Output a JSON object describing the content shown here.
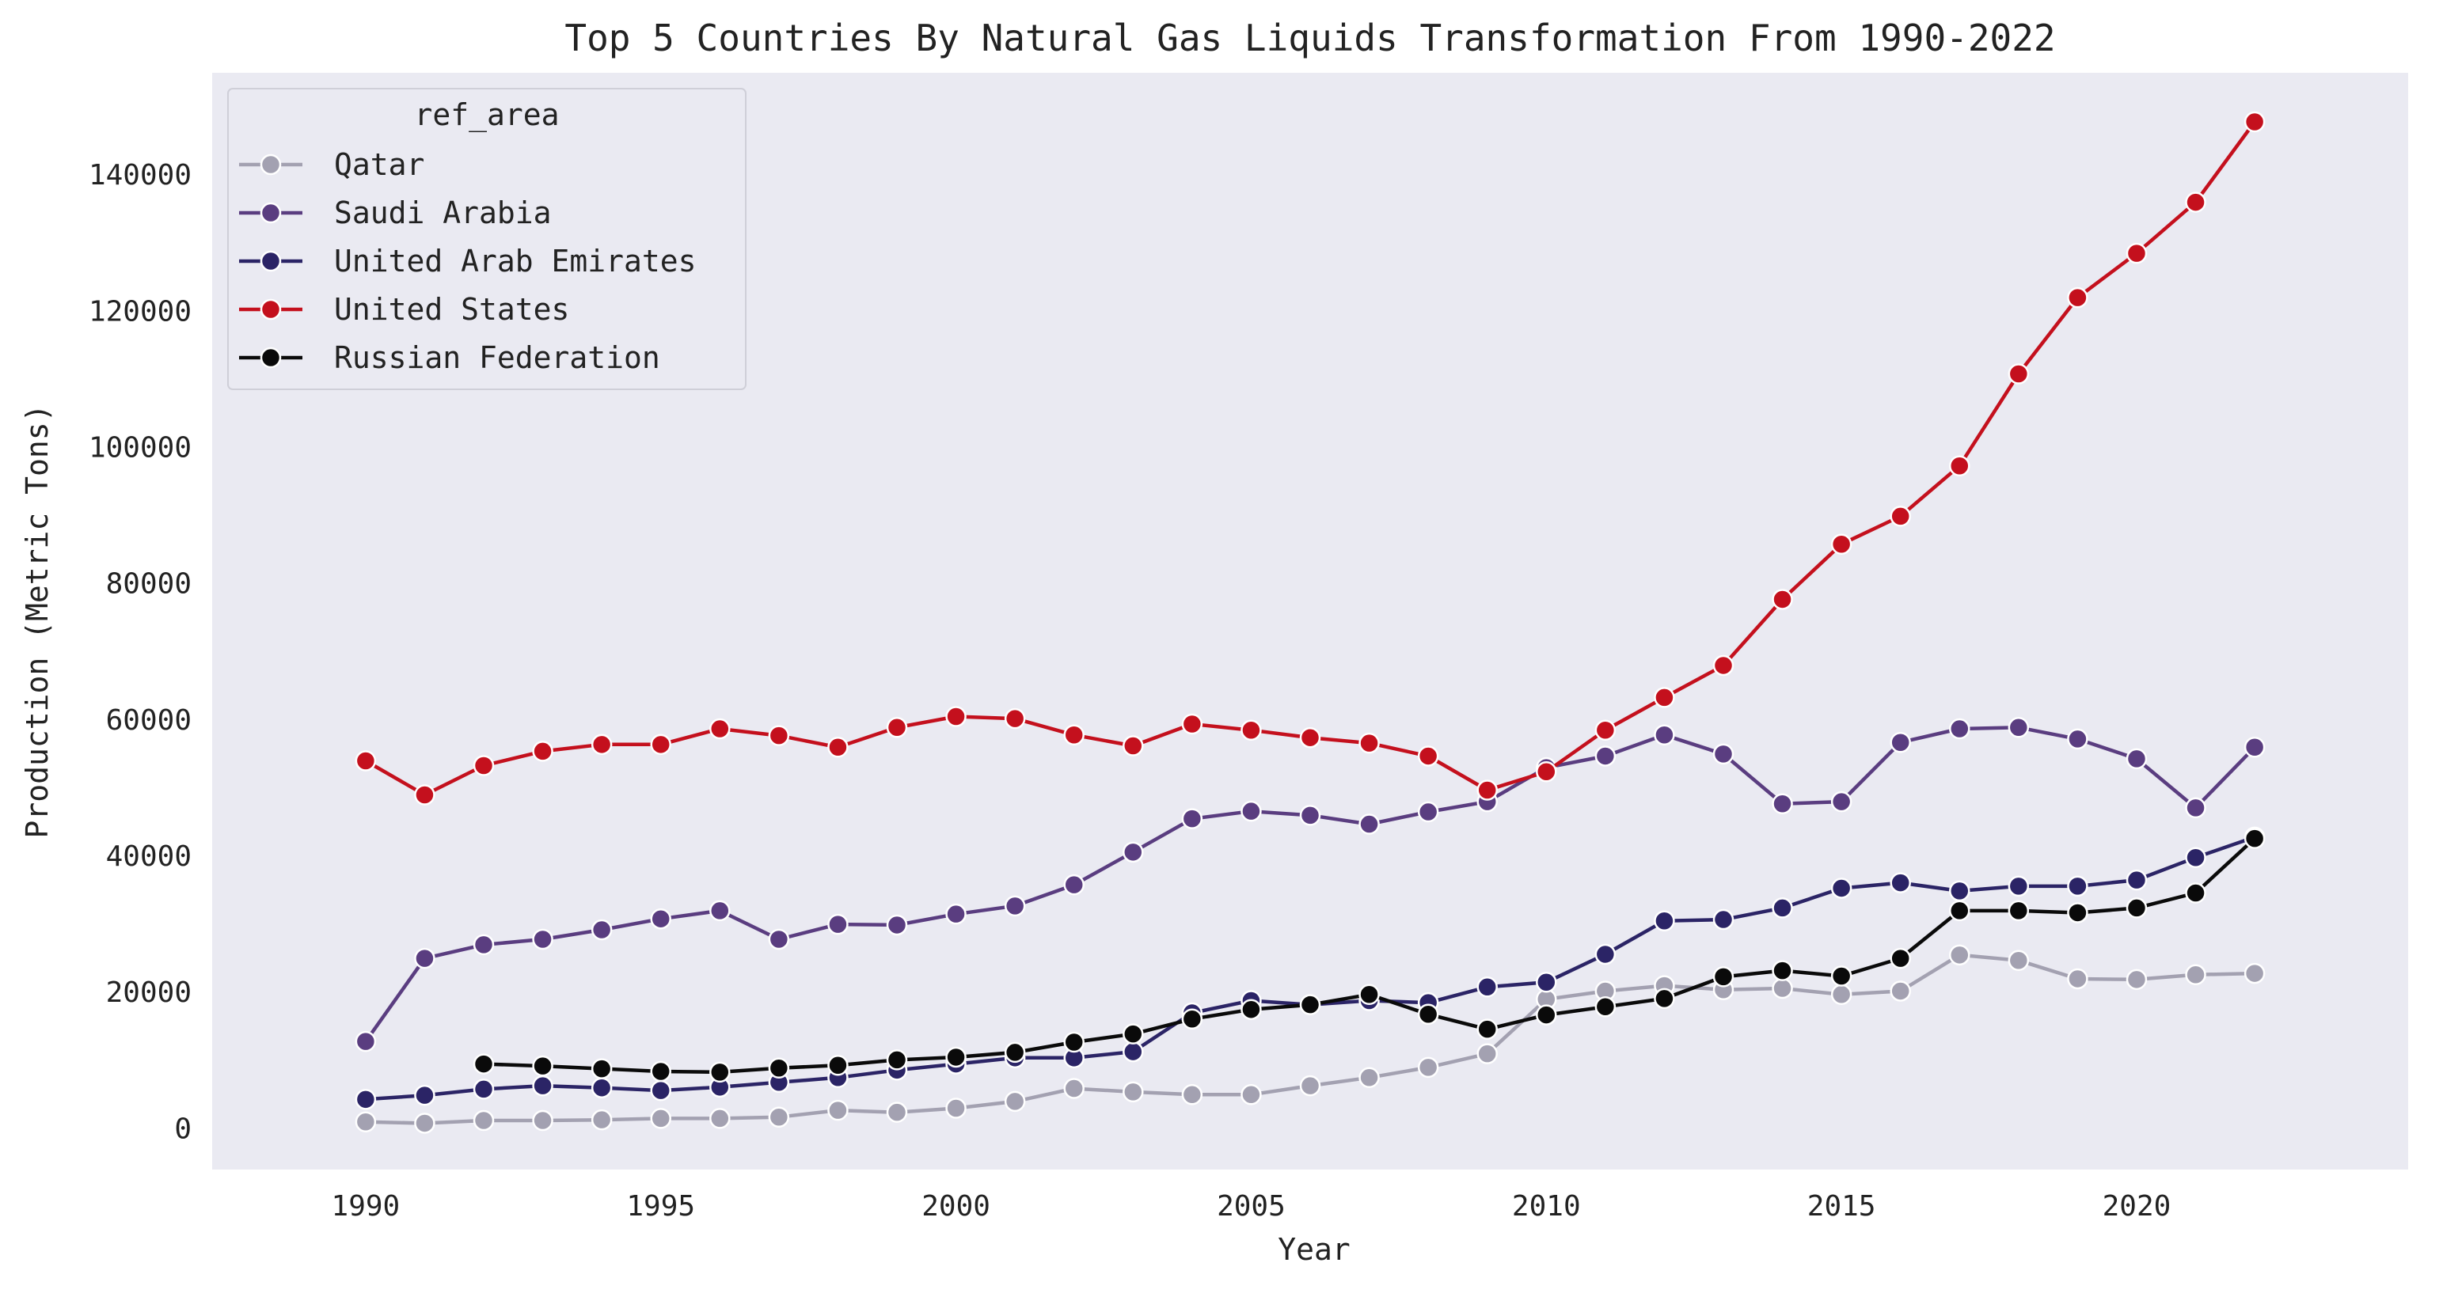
{
  "chart_data": {
    "type": "line",
    "title": "Top 5 Countries By Natural Gas Liquids Transformation From 1990-2022",
    "xlabel": "Year",
    "ylabel": "Production (Metric Tons)",
    "xlim": [
      1987.4,
      2024.6
    ],
    "ylim": [
      -6000,
      155000
    ],
    "xticks": [
      1990,
      1995,
      2000,
      2005,
      2010,
      2015,
      2020
    ],
    "yticks": [
      0,
      20000,
      40000,
      60000,
      80000,
      100000,
      120000,
      140000
    ],
    "grid": false,
    "background": "#eaeaf2",
    "legend": {
      "title": "ref_area",
      "position": "top-left"
    },
    "series": [
      {
        "name": "Qatar",
        "color": "#a3a1b1",
        "x": [
          1990,
          1991,
          1992,
          1993,
          1994,
          1995,
          1996,
          1997,
          1998,
          1999,
          2000,
          2001,
          2002,
          2003,
          2004,
          2005,
          2006,
          2007,
          2008,
          2009,
          2010,
          2011,
          2012,
          2013,
          2014,
          2015,
          2016,
          2017,
          2018,
          2019,
          2020,
          2021,
          2022
        ],
        "y": [
          1000,
          800,
          1200,
          1200,
          1300,
          1500,
          1500,
          1700,
          2700,
          2400,
          3000,
          4000,
          5900,
          5400,
          5000,
          5000,
          6300,
          7500,
          9000,
          11000,
          19000,
          20200,
          21000,
          20400,
          20600,
          19700,
          20200,
          25500,
          24700,
          22000,
          21900,
          22600,
          22800
        ]
      },
      {
        "name": "Saudi Arabia",
        "color": "#5a3d80",
        "x": [
          1990,
          1991,
          1992,
          1993,
          1994,
          1995,
          1996,
          1997,
          1998,
          1999,
          2000,
          2001,
          2002,
          2003,
          2004,
          2005,
          2006,
          2007,
          2008,
          2009,
          2010,
          2011,
          2012,
          2013,
          2014,
          2015,
          2016,
          2017,
          2018,
          2019,
          2020,
          2021,
          2022
        ],
        "y": [
          12800,
          25000,
          27000,
          27800,
          29200,
          30800,
          32000,
          27800,
          30000,
          29900,
          31500,
          32700,
          35800,
          40600,
          45500,
          46600,
          46000,
          44700,
          46500,
          48000,
          53000,
          54700,
          57800,
          55000,
          47700,
          48000,
          56700,
          58700,
          58900,
          57200,
          54300,
          47100,
          56000
        ]
      },
      {
        "name": "United Arab Emirates",
        "color": "#2b2466",
        "x": [
          1990,
          1991,
          1992,
          1993,
          1994,
          1995,
          1996,
          1997,
          1998,
          1999,
          2000,
          2001,
          2002,
          2003,
          2004,
          2005,
          2006,
          2007,
          2008,
          2009,
          2010,
          2011,
          2012,
          2013,
          2014,
          2015,
          2016,
          2017,
          2018,
          2019,
          2020,
          2021,
          2022
        ],
        "y": [
          4300,
          4900,
          5800,
          6300,
          6000,
          5600,
          6100,
          6800,
          7500,
          8600,
          9500,
          10400,
          10400,
          11300,
          17000,
          18800,
          18200,
          18800,
          18500,
          20800,
          21500,
          25600,
          30500,
          30700,
          32400,
          35300,
          36100,
          34900,
          35600,
          35600,
          36500,
          39800,
          42800
        ]
      },
      {
        "name": "United States",
        "color": "#c4101d",
        "x": [
          1990,
          1991,
          1992,
          1993,
          1994,
          1995,
          1996,
          1997,
          1998,
          1999,
          2000,
          2001,
          2002,
          2003,
          2004,
          2005,
          2006,
          2007,
          2008,
          2009,
          2010,
          2011,
          2012,
          2013,
          2014,
          2015,
          2016,
          2017,
          2018,
          2019,
          2020,
          2021,
          2022
        ],
        "y": [
          54000,
          49000,
          53300,
          55400,
          56400,
          56400,
          58700,
          57700,
          56000,
          58900,
          60500,
          60200,
          57800,
          56200,
          59400,
          58500,
          57400,
          56600,
          54700,
          49700,
          52400,
          58500,
          63300,
          68000,
          77700,
          85800,
          89900,
          97300,
          110800,
          122000,
          128500,
          136000,
          147800
        ]
      },
      {
        "name": "Russian Federation",
        "color": "#0a0a0a",
        "x": [
          1992,
          1993,
          1994,
          1995,
          1996,
          1997,
          1998,
          1999,
          2000,
          2001,
          2002,
          2003,
          2004,
          2005,
          2006,
          2007,
          2008,
          2009,
          2010,
          2011,
          2012,
          2013,
          2014,
          2015,
          2016,
          2017,
          2018,
          2019,
          2020,
          2021,
          2022
        ],
        "y": [
          9500,
          9200,
          8800,
          8400,
          8300,
          8900,
          9300,
          10100,
          10500,
          11200,
          12700,
          13900,
          16100,
          17500,
          18200,
          19700,
          16800,
          14600,
          16700,
          17900,
          19100,
          22300,
          23200,
          22400,
          25000,
          32000,
          32000,
          31700,
          32400,
          34600,
          42600
        ]
      }
    ]
  }
}
